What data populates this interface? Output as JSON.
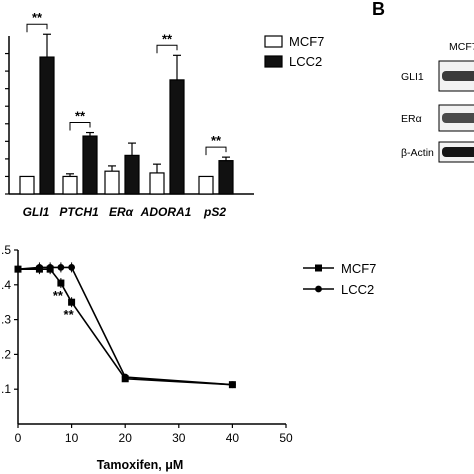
{
  "figure": {
    "panel_b_letter": "B"
  },
  "chart_data": [
    {
      "type": "bar",
      "categories": [
        "GLI1",
        "PTCH1",
        "ERα",
        "ADORA1",
        "pS2"
      ],
      "series": [
        {
          "name": "MCF7",
          "values": [
            1.0,
            1.0,
            1.3,
            1.2,
            1.0
          ],
          "errors": [
            0.0,
            0.15,
            0.3,
            0.5,
            0.0
          ],
          "color": "#ffffff"
        },
        {
          "name": "LCC2",
          "values": [
            7.8,
            3.3,
            2.2,
            6.5,
            1.9
          ],
          "errors": [
            1.3,
            0.2,
            0.7,
            1.4,
            0.2
          ],
          "color": "#111111"
        }
      ],
      "significance": [
        {
          "category": "GLI1",
          "label": "**"
        },
        {
          "category": "PTCH1",
          "label": "**"
        },
        {
          "category": "ADORA1",
          "label": "**"
        },
        {
          "category": "pS2",
          "label": "**"
        }
      ],
      "legend_position": "top-right"
    },
    {
      "type": "line",
      "xlabel": "Tamoxifen, μM",
      "xlim": [
        0,
        50
      ],
      "ylim": [
        0,
        0.5
      ],
      "x_ticks": [
        0,
        10,
        20,
        30,
        40,
        50
      ],
      "y_ticks": [
        0.1,
        0.2,
        0.3,
        0.4,
        0.5
      ],
      "y_tick_labels": [
        ".1",
        ".2",
        ".3",
        ".4",
        ".5"
      ],
      "series": [
        {
          "name": "MCF7",
          "marker": "square",
          "x": [
            0,
            4,
            6,
            8,
            10,
            20,
            40
          ],
          "y": [
            0.445,
            0.445,
            0.445,
            0.405,
            0.35,
            0.13,
            0.113
          ]
        },
        {
          "name": "LCC2",
          "marker": "circle",
          "x": [
            0,
            4,
            6,
            8,
            10,
            20,
            40
          ],
          "y": [
            0.445,
            0.45,
            0.45,
            0.45,
            0.45,
            0.135,
            0.113
          ]
        }
      ],
      "annotations": [
        {
          "x": 8,
          "y": 0.405,
          "label": "**"
        },
        {
          "x": 10,
          "y": 0.35,
          "label": "**"
        }
      ],
      "legend_position": "right"
    }
  ],
  "western_blot": {
    "column_label": "MCF7",
    "rows": [
      "GLI1",
      "ERα",
      "β-Actin"
    ]
  }
}
